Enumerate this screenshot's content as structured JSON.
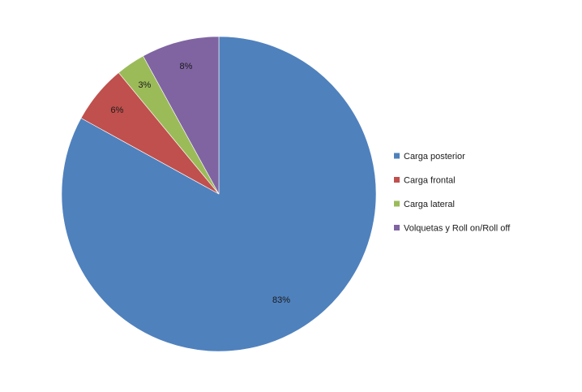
{
  "chart_data": {
    "type": "pie",
    "title": "",
    "slices": [
      {
        "label": "Carga posterior",
        "value": 83,
        "display": "83%",
        "color": "#4F81BD"
      },
      {
        "label": "Carga frontal",
        "value": 6,
        "display": "6%",
        "color": "#C0504D"
      },
      {
        "label": "Carga lateral",
        "value": 3,
        "display": "3%",
        "color": "#9BBB59"
      },
      {
        "label": "Volquetas y Roll on/Roll off",
        "value": 8,
        "display": "8%",
        "color": "#8064A2"
      }
    ],
    "start_angle_deg": 0,
    "direction": "clockwise",
    "legend_position": "right"
  }
}
